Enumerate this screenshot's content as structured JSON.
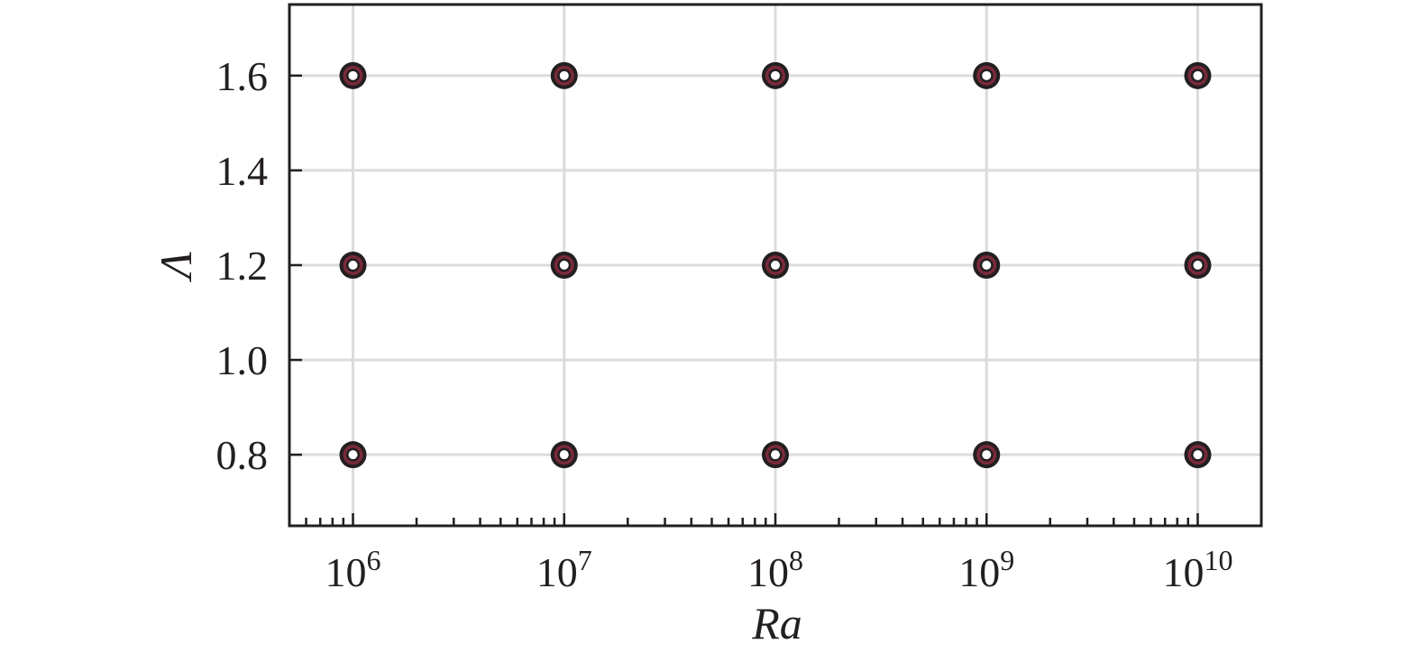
{
  "chart_data": {
    "type": "scatter",
    "xlabel": "Ra",
    "ylabel": "Λ",
    "x_scale": "log",
    "xlim": [
      500000,
      20000000000
    ],
    "ylim": [
      0.65,
      1.75
    ],
    "grid": true,
    "x_ticks": [
      {
        "value": 1000000,
        "base": "10",
        "exp": "6"
      },
      {
        "value": 10000000,
        "base": "10",
        "exp": "7"
      },
      {
        "value": 100000000,
        "base": "10",
        "exp": "8"
      },
      {
        "value": 1000000000,
        "base": "10",
        "exp": "9"
      },
      {
        "value": 10000000000,
        "base": "10",
        "exp": "10"
      }
    ],
    "y_ticks": [
      {
        "value": 0.8,
        "label": "0.8"
      },
      {
        "value": 1.0,
        "label": "1.0"
      },
      {
        "value": 1.2,
        "label": "1.2"
      },
      {
        "value": 1.4,
        "label": "1.4"
      },
      {
        "value": 1.6,
        "label": "1.6"
      }
    ],
    "series": [
      {
        "marker": "circle",
        "points": [
          {
            "x": 1000000,
            "y": 0.8
          },
          {
            "x": 10000000,
            "y": 0.8
          },
          {
            "x": 100000000,
            "y": 0.8
          },
          {
            "x": 1000000000,
            "y": 0.8
          },
          {
            "x": 10000000000,
            "y": 0.8
          },
          {
            "x": 1000000,
            "y": 1.2
          },
          {
            "x": 10000000,
            "y": 1.2
          },
          {
            "x": 100000000,
            "y": 1.2
          },
          {
            "x": 1000000000,
            "y": 1.2
          },
          {
            "x": 10000000000,
            "y": 1.2
          },
          {
            "x": 1000000,
            "y": 1.6
          },
          {
            "x": 10000000,
            "y": 1.6
          },
          {
            "x": 100000000,
            "y": 1.6
          },
          {
            "x": 1000000000,
            "y": 1.6
          },
          {
            "x": 10000000000,
            "y": 1.6
          }
        ]
      }
    ],
    "colors": {
      "axis": "#231f20",
      "grid": "#dcdcdc",
      "marker_outer": "#231f20",
      "marker_ring": "#7a2a3a",
      "marker_inner": "#ffffff"
    }
  }
}
